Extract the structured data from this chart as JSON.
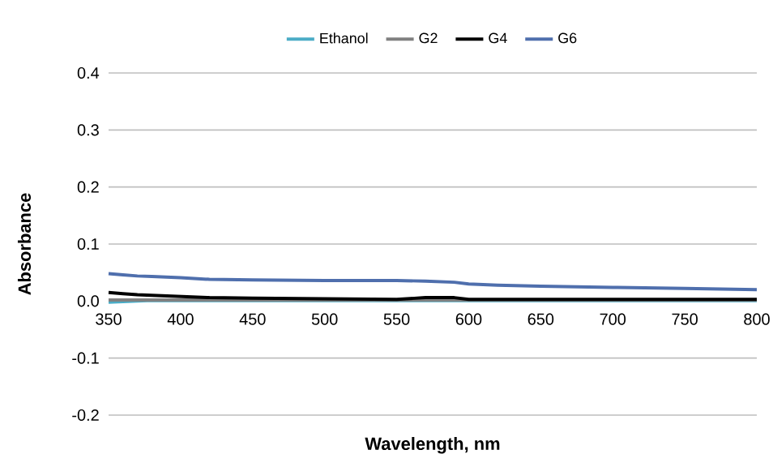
{
  "chart_data": {
    "type": "line",
    "xlabel": "Wavelength, nm",
    "ylabel": "Absorbance",
    "x": [
      350,
      360,
      370,
      380,
      400,
      420,
      450,
      500,
      550,
      570,
      590,
      600,
      620,
      650,
      700,
      750,
      800
    ],
    "series": [
      {
        "name": "Ethanol",
        "color": "#4bacc6",
        "values": [
          -0.002,
          -0.001,
          0.0,
          0.001,
          0.001,
          0.001,
          0.001,
          0.001,
          0.001,
          0.001,
          0.001,
          0.001,
          0.001,
          0.001,
          0.001,
          0.001,
          0.001
        ]
      },
      {
        "name": "G2",
        "color": "#808080",
        "values": [
          0.002,
          0.002,
          0.002,
          0.002,
          0.002,
          0.002,
          0.002,
          0.002,
          0.002,
          0.002,
          0.002,
          0.002,
          0.002,
          0.002,
          0.002,
          0.002,
          0.002
        ]
      },
      {
        "name": "G4",
        "color": "#000000",
        "values": [
          0.015,
          0.013,
          0.011,
          0.01,
          0.008,
          0.006,
          0.005,
          0.004,
          0.003,
          0.006,
          0.006,
          0.003,
          0.003,
          0.003,
          0.003,
          0.003,
          0.003
        ]
      },
      {
        "name": "G6",
        "color": "#4f6fad",
        "values": [
          0.048,
          0.046,
          0.044,
          0.043,
          0.041,
          0.038,
          0.037,
          0.036,
          0.036,
          0.035,
          0.033,
          0.03,
          0.028,
          0.026,
          0.024,
          0.022,
          0.02
        ]
      }
    ],
    "xlim": [
      350,
      800
    ],
    "ylim": [
      -0.2,
      0.4
    ],
    "xticks": [
      350,
      400,
      450,
      500,
      550,
      600,
      650,
      700,
      750,
      800
    ],
    "yticks": [
      -0.2,
      -0.1,
      {
        "value": 0,
        "label": "0.0"
      },
      0.1,
      0.2,
      0.3,
      0.4
    ],
    "grid": "y",
    "legend": "top"
  }
}
